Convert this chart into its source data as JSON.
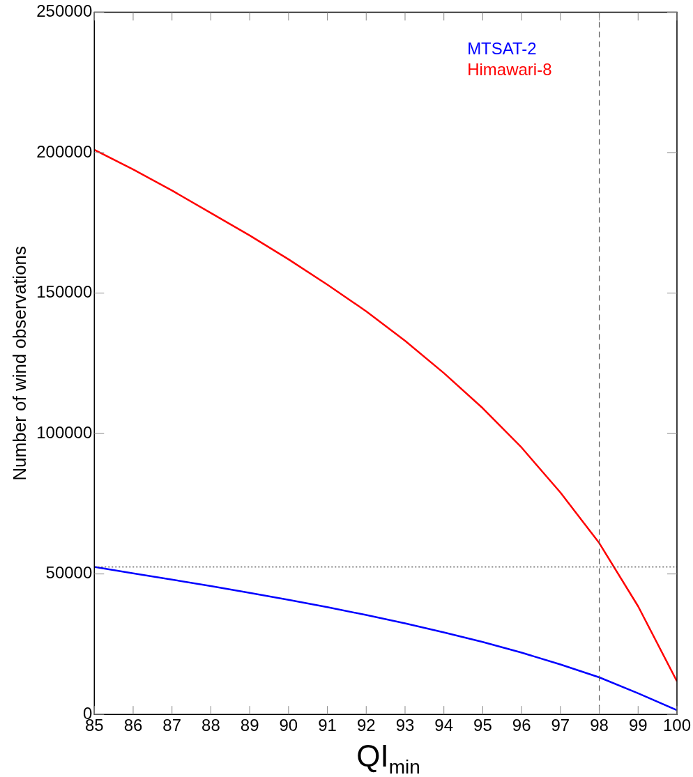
{
  "chart_data": {
    "type": "line",
    "xlabel": "QI$_{min}$",
    "ylabel": "Number of wind observations",
    "x": [
      85,
      86,
      87,
      88,
      89,
      90,
      91,
      92,
      93,
      94,
      95,
      96,
      97,
      98,
      99,
      100
    ],
    "series": [
      {
        "name": "MTSAT-2",
        "color": "#0000ff",
        "values": [
          52500,
          50200,
          48000,
          45700,
          43300,
          40800,
          38200,
          35400,
          32400,
          29200,
          25800,
          22000,
          17800,
          13200,
          7500,
          1500
        ]
      },
      {
        "name": "Himawari-8",
        "color": "#ff0000",
        "values": [
          201000,
          194000,
          186500,
          178500,
          170500,
          162000,
          153000,
          143500,
          133000,
          121500,
          109000,
          95000,
          79000,
          61000,
          38500,
          11800
        ]
      }
    ],
    "xlim": [
      85,
      100
    ],
    "xticks": [
      85,
      86,
      87,
      88,
      89,
      90,
      91,
      92,
      93,
      94,
      95,
      96,
      97,
      98,
      99,
      100
    ],
    "ylim": [
      0,
      250000
    ],
    "yticks": [
      0,
      50000,
      100000,
      150000,
      200000,
      250000
    ],
    "ref_lines": [
      {
        "axis": "x",
        "value": 98,
        "color": "#555555",
        "line_style": "dashed"
      },
      {
        "axis": "y",
        "value": 52500,
        "color": "#333333",
        "line_style": "dotted"
      }
    ],
    "grid": false,
    "legend": "top right",
    "marker": "none",
    "line_style": "solid"
  }
}
